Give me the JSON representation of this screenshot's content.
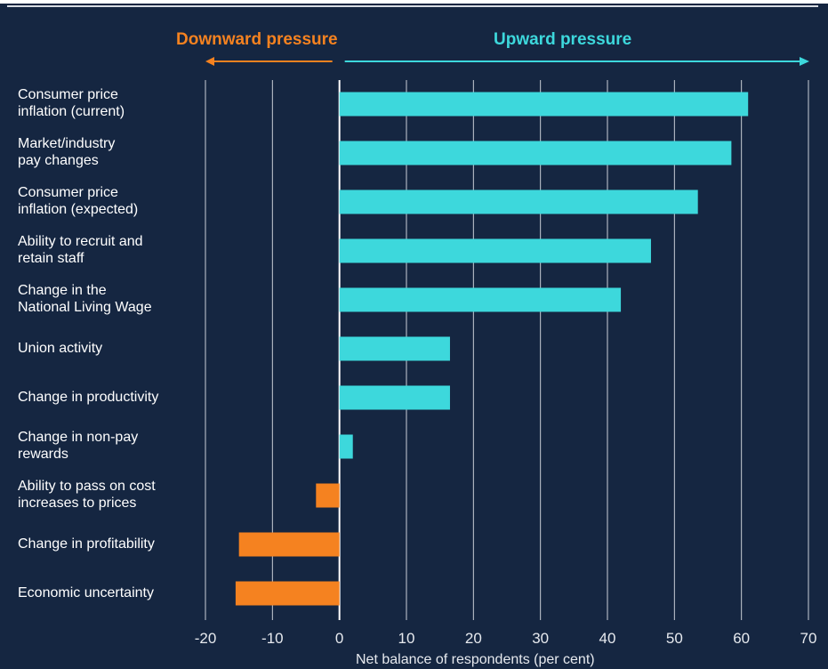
{
  "header": {
    "downward_label": "Downward pressure",
    "upward_label": "Upward pressure"
  },
  "colors": {
    "background": "#152641",
    "upward": "#3dd8dc",
    "downward": "#f58220",
    "grid": "#c9ced6",
    "text": "#ffffff"
  },
  "chart_data": {
    "type": "bar",
    "orientation": "horizontal",
    "categories": [
      [
        "Consumer price",
        "inflation (current)"
      ],
      [
        "Market/industry",
        "pay changes"
      ],
      [
        "Consumer price",
        "inflation (expected)"
      ],
      [
        "Ability to recruit and",
        "retain staff"
      ],
      [
        "Change in the",
        "National Living Wage"
      ],
      [
        "Union activity"
      ],
      [
        "Change in productivity"
      ],
      [
        "Change in non-pay",
        "rewards"
      ],
      [
        "Ability to pass on cost",
        "increases to prices"
      ],
      [
        "Change in profitability"
      ],
      [
        "Economic uncertainty"
      ]
    ],
    "values": [
      61,
      58.5,
      53.5,
      46.5,
      42,
      16.5,
      16.5,
      2,
      -3.5,
      -15,
      -15.5
    ],
    "xlim": [
      -20,
      70
    ],
    "xticks": [
      -20,
      -10,
      0,
      10,
      20,
      30,
      40,
      50,
      60,
      70
    ],
    "xlabel": "Net balance of respondents (per cent)",
    "grid": true
  }
}
